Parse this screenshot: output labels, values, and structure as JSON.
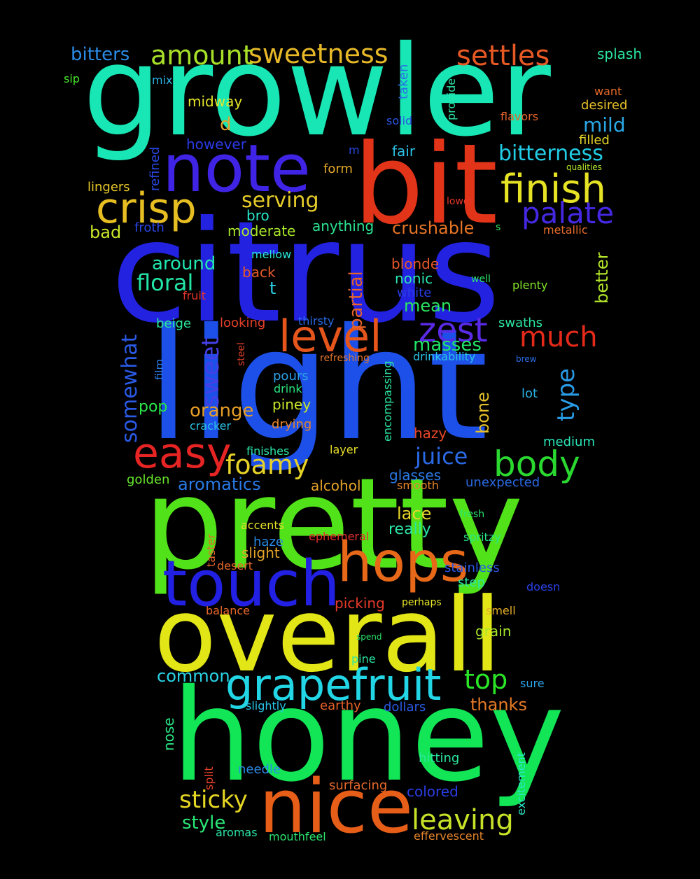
{
  "words": [
    {
      "text": "growler",
      "color": "#18e6b4"
    },
    {
      "text": "citrus",
      "color": "#2222e0"
    },
    {
      "text": "light",
      "color": "#1c50e8"
    },
    {
      "text": "pretty",
      "color": "#52e21a"
    },
    {
      "text": "honey",
      "color": "#12e656"
    },
    {
      "text": "overall",
      "color": "#e2e616"
    },
    {
      "text": "bit",
      "color": "#e23418"
    },
    {
      "text": "note",
      "color": "#4024e6"
    },
    {
      "text": "nice",
      "color": "#e65e18"
    },
    {
      "text": "touch",
      "color": "#2220e2"
    },
    {
      "text": "hops",
      "color": "#e66818"
    },
    {
      "text": "grapefruit",
      "color": "#22d6e6"
    },
    {
      "text": "crisp",
      "color": "#e6be22"
    },
    {
      "text": "finish",
      "color": "#e6e224"
    },
    {
      "text": "level",
      "color": "#e6561c"
    },
    {
      "text": "easy",
      "color": "#e62424"
    },
    {
      "text": "body",
      "color": "#2ad830"
    },
    {
      "text": "sweetness",
      "color": "#e6b828"
    },
    {
      "text": "amount",
      "color": "#a8e028"
    },
    {
      "text": "settles",
      "color": "#e65824"
    },
    {
      "text": "palate",
      "color": "#4428e2"
    },
    {
      "text": "zest",
      "color": "#5a2ae6"
    },
    {
      "text": "much",
      "color": "#e62a1a"
    },
    {
      "text": "foamy",
      "color": "#e6d228"
    },
    {
      "text": "leaving",
      "color": "#c8e228"
    },
    {
      "text": "sticky",
      "color": "#e6d624"
    },
    {
      "text": "top",
      "color": "#2ae626"
    },
    {
      "text": "juice",
      "color": "#2a6ae6"
    },
    {
      "text": "bitterness",
      "color": "#22cce6"
    },
    {
      "text": "serving",
      "color": "#e6cc2a"
    },
    {
      "text": "floral",
      "color": "#22e6a6"
    },
    {
      "text": "orange",
      "color": "#e69e26"
    },
    {
      "text": "bitters",
      "color": "#2a8ce6"
    },
    {
      "text": "mild",
      "color": "#2aa8e6"
    },
    {
      "text": "masses",
      "color": "#22e668"
    },
    {
      "text": "crushable",
      "color": "#e67426"
    },
    {
      "text": "around",
      "color": "#22e6b0"
    },
    {
      "text": "aromatics",
      "color": "#2a7ae6"
    },
    {
      "text": "common",
      "color": "#2ad4e6"
    },
    {
      "text": "thanks",
      "color": "#e67a26"
    },
    {
      "text": "style",
      "color": "#2ae676"
    },
    {
      "text": "mean",
      "color": "#2ae660"
    },
    {
      "text": "lace",
      "color": "#e6d62a"
    },
    {
      "text": "really",
      "color": "#2ae6a6"
    },
    {
      "text": "splash",
      "color": "#2ae6a0"
    },
    {
      "text": "midway",
      "color": "#e6e62a"
    },
    {
      "text": "however",
      "color": "#2a3ae6"
    },
    {
      "text": "d",
      "color": "#e6a42a"
    },
    {
      "text": "fair",
      "color": "#2ac2e6"
    },
    {
      "text": "form",
      "color": "#e6a82a"
    },
    {
      "text": "lingers",
      "color": "#e6c82a"
    },
    {
      "text": "bad",
      "color": "#c8e62a"
    },
    {
      "text": "froth",
      "color": "#2a46e6"
    },
    {
      "text": "moderate",
      "color": "#a8e62a"
    },
    {
      "text": "anything",
      "color": "#2ae692"
    },
    {
      "text": "bro",
      "color": "#2ae6c8"
    },
    {
      "text": "mellow",
      "color": "#2ae6dc"
    },
    {
      "text": "back",
      "color": "#e65a2a"
    },
    {
      "text": "t",
      "color": "#2ad0e6"
    },
    {
      "text": "blonde",
      "color": "#e6582a"
    },
    {
      "text": "nonic",
      "color": "#2ae6b4"
    },
    {
      "text": "white",
      "color": "#2a3ce6"
    },
    {
      "text": "fruit",
      "color": "#e6362a"
    },
    {
      "text": "beige",
      "color": "#2ae69a"
    },
    {
      "text": "looking",
      "color": "#e6402a"
    },
    {
      "text": "thirsty",
      "color": "#2a6ae6"
    },
    {
      "text": "swaths",
      "color": "#2ae6a2"
    },
    {
      "text": "pours",
      "color": "#2aa0e6"
    },
    {
      "text": "refreshing",
      "color": "#e6762a"
    },
    {
      "text": "drinkability",
      "color": "#2ac4e6"
    },
    {
      "text": "drink",
      "color": "#2ae680"
    },
    {
      "text": "piney",
      "color": "#c8e62a"
    },
    {
      "text": "pop",
      "color": "#2ae648"
    },
    {
      "text": "cracker",
      "color": "#2ac2e6"
    },
    {
      "text": "drying",
      "color": "#e6862a"
    },
    {
      "text": "lot",
      "color": "#2ab4e6"
    },
    {
      "text": "hazy",
      "color": "#e6462a"
    },
    {
      "text": "medium",
      "color": "#2ae6b8"
    },
    {
      "text": "finishes",
      "color": "#2ae6a8"
    },
    {
      "text": "layer",
      "color": "#e6de2a"
    },
    {
      "text": "golden",
      "color": "#66e62a"
    },
    {
      "text": "alcohol",
      "color": "#e6a42a"
    },
    {
      "text": "glasses",
      "color": "#2a7ae6"
    },
    {
      "text": "smooth",
      "color": "#e6862a"
    },
    {
      "text": "unexpected",
      "color": "#2a6ae6"
    },
    {
      "text": "fresh",
      "color": "#2ae670"
    },
    {
      "text": "accents",
      "color": "#e6e22a"
    },
    {
      "text": "ephemeral",
      "color": "#e6302a"
    },
    {
      "text": "spritzy",
      "color": "#2ae68a"
    },
    {
      "text": "haze",
      "color": "#2a8ae6"
    },
    {
      "text": "slight",
      "color": "#e6a62a"
    },
    {
      "text": "desert",
      "color": "#e6662a"
    },
    {
      "text": "stainless",
      "color": "#2a58e6"
    },
    {
      "text": "step",
      "color": "#2ae6a4"
    },
    {
      "text": "doesn",
      "color": "#2a40e6"
    },
    {
      "text": "picking",
      "color": "#e63a2a"
    },
    {
      "text": "perhaps",
      "color": "#e6e62a"
    },
    {
      "text": "balance",
      "color": "#e6682a"
    },
    {
      "text": "smell",
      "color": "#e6ae2a"
    },
    {
      "text": "grain",
      "color": "#a6e62a"
    },
    {
      "text": "spend",
      "color": "#2ae66a"
    },
    {
      "text": "pine",
      "color": "#2ae6a4"
    },
    {
      "text": "sure",
      "color": "#2aa4e6"
    },
    {
      "text": "slightly",
      "color": "#2ac4e6"
    },
    {
      "text": "earthy",
      "color": "#e6622a"
    },
    {
      "text": "dollars",
      "color": "#2a5ae6"
    },
    {
      "text": "hitting",
      "color": "#2ae69e"
    },
    {
      "text": "needle",
      "color": "#2a8ae6"
    },
    {
      "text": "surfacing",
      "color": "#e6682a"
    },
    {
      "text": "colored",
      "color": "#2a3ee6"
    },
    {
      "text": "aromas",
      "color": "#2ae6a6"
    },
    {
      "text": "mouthfeel",
      "color": "#2ae670"
    },
    {
      "text": "effervescent",
      "color": "#e6862a"
    },
    {
      "text": "sip",
      "color": "#48e62a"
    },
    {
      "text": "mix",
      "color": "#2ab4e6"
    },
    {
      "text": "want",
      "color": "#e66a2a"
    },
    {
      "text": "desired",
      "color": "#e6c02a"
    },
    {
      "text": "flavors",
      "color": "#e6642a"
    },
    {
      "text": "filled",
      "color": "#e6d42a"
    },
    {
      "text": "solid",
      "color": "#2a54e6"
    },
    {
      "text": "m",
      "color": "#2a48e6"
    },
    {
      "text": "qualities",
      "color": "#b4e62a"
    },
    {
      "text": "lower",
      "color": "#e6362a"
    },
    {
      "text": "s",
      "color": "#2ae662"
    },
    {
      "text": "metallic",
      "color": "#e66c2a"
    },
    {
      "text": "well",
      "color": "#2ae66a"
    },
    {
      "text": "plenty",
      "color": "#82e62a"
    },
    {
      "text": "brew",
      "color": "#2a6ee6"
    },
    {
      "text": "somewhat",
      "color": "#2a5ae6"
    },
    {
      "text": "sweet",
      "color": "#4440e6"
    },
    {
      "text": "partial",
      "color": "#e6642a"
    },
    {
      "text": "type",
      "color": "#2a9ce6"
    },
    {
      "text": "better",
      "color": "#b4e62a"
    },
    {
      "text": "bone",
      "color": "#e6c02a"
    },
    {
      "text": "refined",
      "color": "#2a48e6"
    },
    {
      "text": "taken",
      "color": "#2a6ee6"
    },
    {
      "text": "provide",
      "color": "#2ae6a8"
    },
    {
      "text": "film",
      "color": "#2a7ae6"
    },
    {
      "text": "steel",
      "color": "#e6422a"
    },
    {
      "text": "encompassing",
      "color": "#2ae6a4"
    },
    {
      "text": "taster",
      "color": "#e6682a"
    },
    {
      "text": "nose",
      "color": "#2ae684"
    },
    {
      "text": "split",
      "color": "#e6422a"
    },
    {
      "text": "excitement",
      "color": "#2ae6c8"
    }
  ]
}
